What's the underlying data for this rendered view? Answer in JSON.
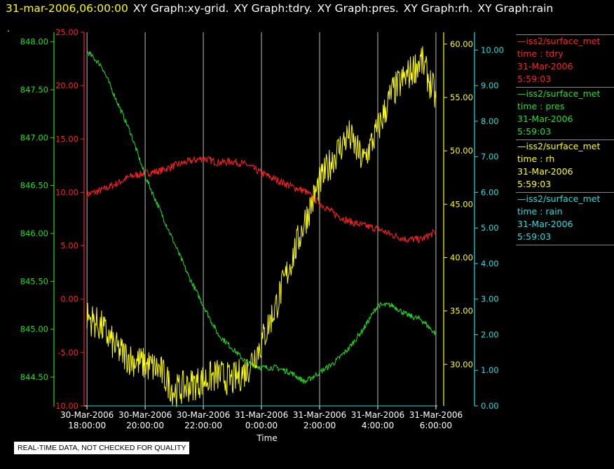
{
  "header": {
    "timestamp": "31-mar-2006,06:00:00",
    "graph_titles": [
      "XY Graph:xy-grid.",
      "XY Graph:tdry.",
      "XY Graph:pres.",
      "XY Graph:rh.",
      "XY Graph:rain"
    ]
  },
  "header_dot": ".",
  "notice": "REAL-TIME DATA, NOT CHECKED FOR QUALITY",
  "legend": [
    {
      "source": "—iss2/surface_met",
      "label": "time : tdry",
      "date": "31-Mar-2006",
      "time": "5:59:03",
      "color": "#ff2020"
    },
    {
      "source": "—iss2/surface_met",
      "label": "time : pres",
      "date": "31-Mar-2006",
      "time": "5:59:03",
      "color": "#20e020"
    },
    {
      "source": "—iss2/surface_met",
      "label": "time : rh",
      "date": "31-Mar-2006",
      "time": "5:59:03",
      "color": "#ffff00"
    },
    {
      "source": "—iss2/surface_met",
      "label": "time : rain",
      "date": "31-Mar-2006",
      "time": "5:59:03",
      "color": "#20e0e0"
    }
  ],
  "chart_data": {
    "type": "line",
    "xlabel": "Time",
    "x_ticks": [
      {
        "date": "30-Mar-2006",
        "time": "18:00:00",
        "t": 18
      },
      {
        "date": "30-Mar-2006",
        "time": "20:00:00",
        "t": 20
      },
      {
        "date": "30-Mar-2006",
        "time": "22:00:00",
        "t": 22
      },
      {
        "date": "31-Mar-2006",
        "time": "0:00:00",
        "t": 24
      },
      {
        "date": "31-Mar-2006",
        "time": "2:00:00",
        "t": 26
      },
      {
        "date": "31-Mar-2006",
        "time": "4:00:00",
        "t": 28
      },
      {
        "date": "31-Mar-2006",
        "time": "6:00:00",
        "t": 30
      }
    ],
    "xlim": [
      17.9,
      30.05
    ],
    "grid": "vertical",
    "axes": [
      {
        "id": "tdry",
        "color": "#ff2020",
        "ylim": [
          -10,
          25
        ],
        "ticks": [
          "25.00",
          "20.00",
          "15.00",
          "10.00",
          "5.00",
          "0.00",
          "-5.00",
          "-10.00"
        ],
        "tick_values": [
          25,
          20,
          15,
          10,
          5,
          0,
          -5,
          -10
        ]
      },
      {
        "id": "pres",
        "color": "#20e020",
        "ylim": [
          844.2,
          848.1
        ],
        "ticks": [
          "848.00",
          "847.50",
          "847.00",
          "846.50",
          "846.00",
          "845.50",
          "845.00",
          "844.50"
        ],
        "tick_values": [
          848,
          847.5,
          847,
          846.5,
          846,
          845.5,
          845,
          844.5
        ]
      },
      {
        "id": "rh",
        "color": "#ffff00",
        "ylim": [
          26.11,
          61.11
        ],
        "ticks": [
          "60.00",
          "55.00",
          "50.00",
          "45.00",
          "40.00",
          "35.00",
          "30.00"
        ],
        "tick_values": [
          60,
          55,
          50,
          45,
          40,
          35,
          30
        ]
      },
      {
        "id": "rain",
        "color": "#20e0e0",
        "ylim": [
          0,
          10.5
        ],
        "ticks": [
          "10.00",
          "9.00",
          "8.00",
          "7.00",
          "6.00",
          "5.00",
          "4.00",
          "3.00",
          "2.00",
          "1.00",
          "0.00"
        ],
        "tick_values": [
          10,
          9,
          8,
          7,
          6,
          5,
          4,
          3,
          2,
          1,
          0
        ]
      }
    ],
    "series": [
      {
        "name": "time : tdry",
        "axis": "tdry",
        "color": "#ff2020",
        "x": [
          18.0,
          18.5,
          19.0,
          19.5,
          20.0,
          20.5,
          21.0,
          21.5,
          22.0,
          22.5,
          23.0,
          23.5,
          24.0,
          24.5,
          25.0,
          25.5,
          26.0,
          26.5,
          27.0,
          27.5,
          28.0,
          28.5,
          29.0,
          29.5,
          30.0
        ],
        "values": [
          9.8,
          10.2,
          10.8,
          11.5,
          11.8,
          12.0,
          12.5,
          12.9,
          13.2,
          12.8,
          12.9,
          12.6,
          11.8,
          11.2,
          10.6,
          10.1,
          9.0,
          8.0,
          7.3,
          6.9,
          6.6,
          6.0,
          5.6,
          5.6,
          6.3
        ]
      },
      {
        "name": "time : pres",
        "axis": "pres",
        "color": "#20e020",
        "x": [
          18.0,
          18.5,
          19.0,
          19.5,
          20.0,
          20.5,
          21.0,
          21.5,
          22.0,
          22.5,
          23.0,
          23.5,
          24.0,
          24.5,
          25.0,
          25.5,
          26.0,
          26.5,
          27.0,
          27.5,
          28.0,
          28.5,
          29.0,
          29.5,
          30.0
        ],
        "values": [
          847.9,
          847.75,
          847.4,
          847.05,
          846.6,
          846.25,
          845.9,
          845.55,
          845.25,
          844.95,
          844.8,
          844.65,
          844.6,
          844.6,
          844.55,
          844.45,
          844.55,
          844.65,
          844.8,
          845.0,
          845.25,
          845.25,
          845.15,
          845.1,
          844.95
        ]
      },
      {
        "name": "time : rh",
        "axis": "rh",
        "color": "#ffff00",
        "x": [
          18.0,
          18.5,
          19.0,
          19.5,
          20.0,
          20.5,
          21.0,
          21.5,
          22.0,
          22.5,
          23.0,
          23.5,
          24.0,
          24.5,
          25.0,
          25.5,
          26.0,
          26.5,
          27.0,
          27.5,
          28.0,
          28.5,
          29.0,
          29.5,
          30.0
        ],
        "values": [
          34.5,
          33.5,
          31.5,
          30.5,
          30.0,
          29.5,
          27.5,
          28.0,
          28.5,
          29.0,
          28.5,
          29.5,
          32.0,
          35.5,
          39.5,
          43.5,
          47.0,
          49.5,
          51.5,
          49.0,
          52.0,
          55.5,
          57.0,
          58.5,
          55.0
        ]
      },
      {
        "name": "time : rain",
        "axis": "rain",
        "color": "#20e0e0",
        "x": [
          18.0,
          30.0
        ],
        "values": [
          0.0,
          0.0
        ]
      }
    ]
  }
}
